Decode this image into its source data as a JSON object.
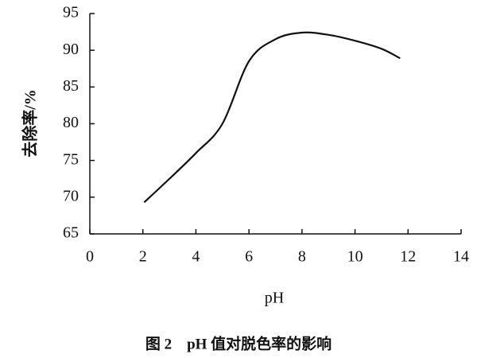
{
  "chart_data": {
    "type": "line",
    "caption": "图 2　pH 值对脱色率的影响",
    "x_label": "pH",
    "y_label": "去除率/%",
    "x": [
      2.05,
      3,
      4,
      5,
      6,
      7,
      8,
      9,
      10,
      11,
      11.7
    ],
    "series": [
      {
        "color": "#111111",
        "values": [
          69.3,
          72.5,
          76,
          80,
          88.5,
          91.5,
          92.4,
          92.1,
          91.3,
          90.2,
          88.9
        ]
      }
    ],
    "xlim": [
      0,
      14
    ],
    "xticks": [
      0,
      2,
      4,
      6,
      8,
      10,
      12,
      14
    ],
    "ylim": [
      65,
      95
    ],
    "yticks": [
      65,
      70,
      75,
      80,
      85,
      90,
      95
    ],
    "grid": false
  }
}
